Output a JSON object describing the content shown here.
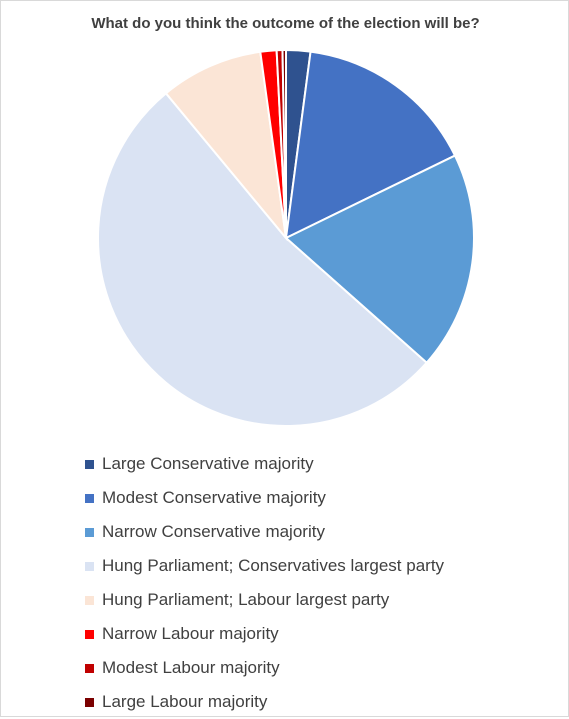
{
  "chart_data": {
    "type": "pie",
    "title": "What do you think the outcome of the election will be?",
    "categories": [
      "Large Conservative majority",
      "Modest Conservative majority",
      "Narrow Conservative majority",
      "Hung Parliament; Conservatives largest party",
      "Hung Parliament; Labour largest party",
      "Narrow Labour majority",
      "Modest Labour majority",
      "Large Labour majority"
    ],
    "values": [
      2.1,
      15.8,
      18.9,
      52.8,
      8.9,
      1.4,
      0.5,
      0.3
    ],
    "colors": [
      "#2F528F",
      "#4472C4",
      "#5B9BD5",
      "#DAE3F3",
      "#FBE5D6",
      "#FF0000",
      "#C00000",
      "#7B0000"
    ],
    "legend_position": "bottom"
  }
}
